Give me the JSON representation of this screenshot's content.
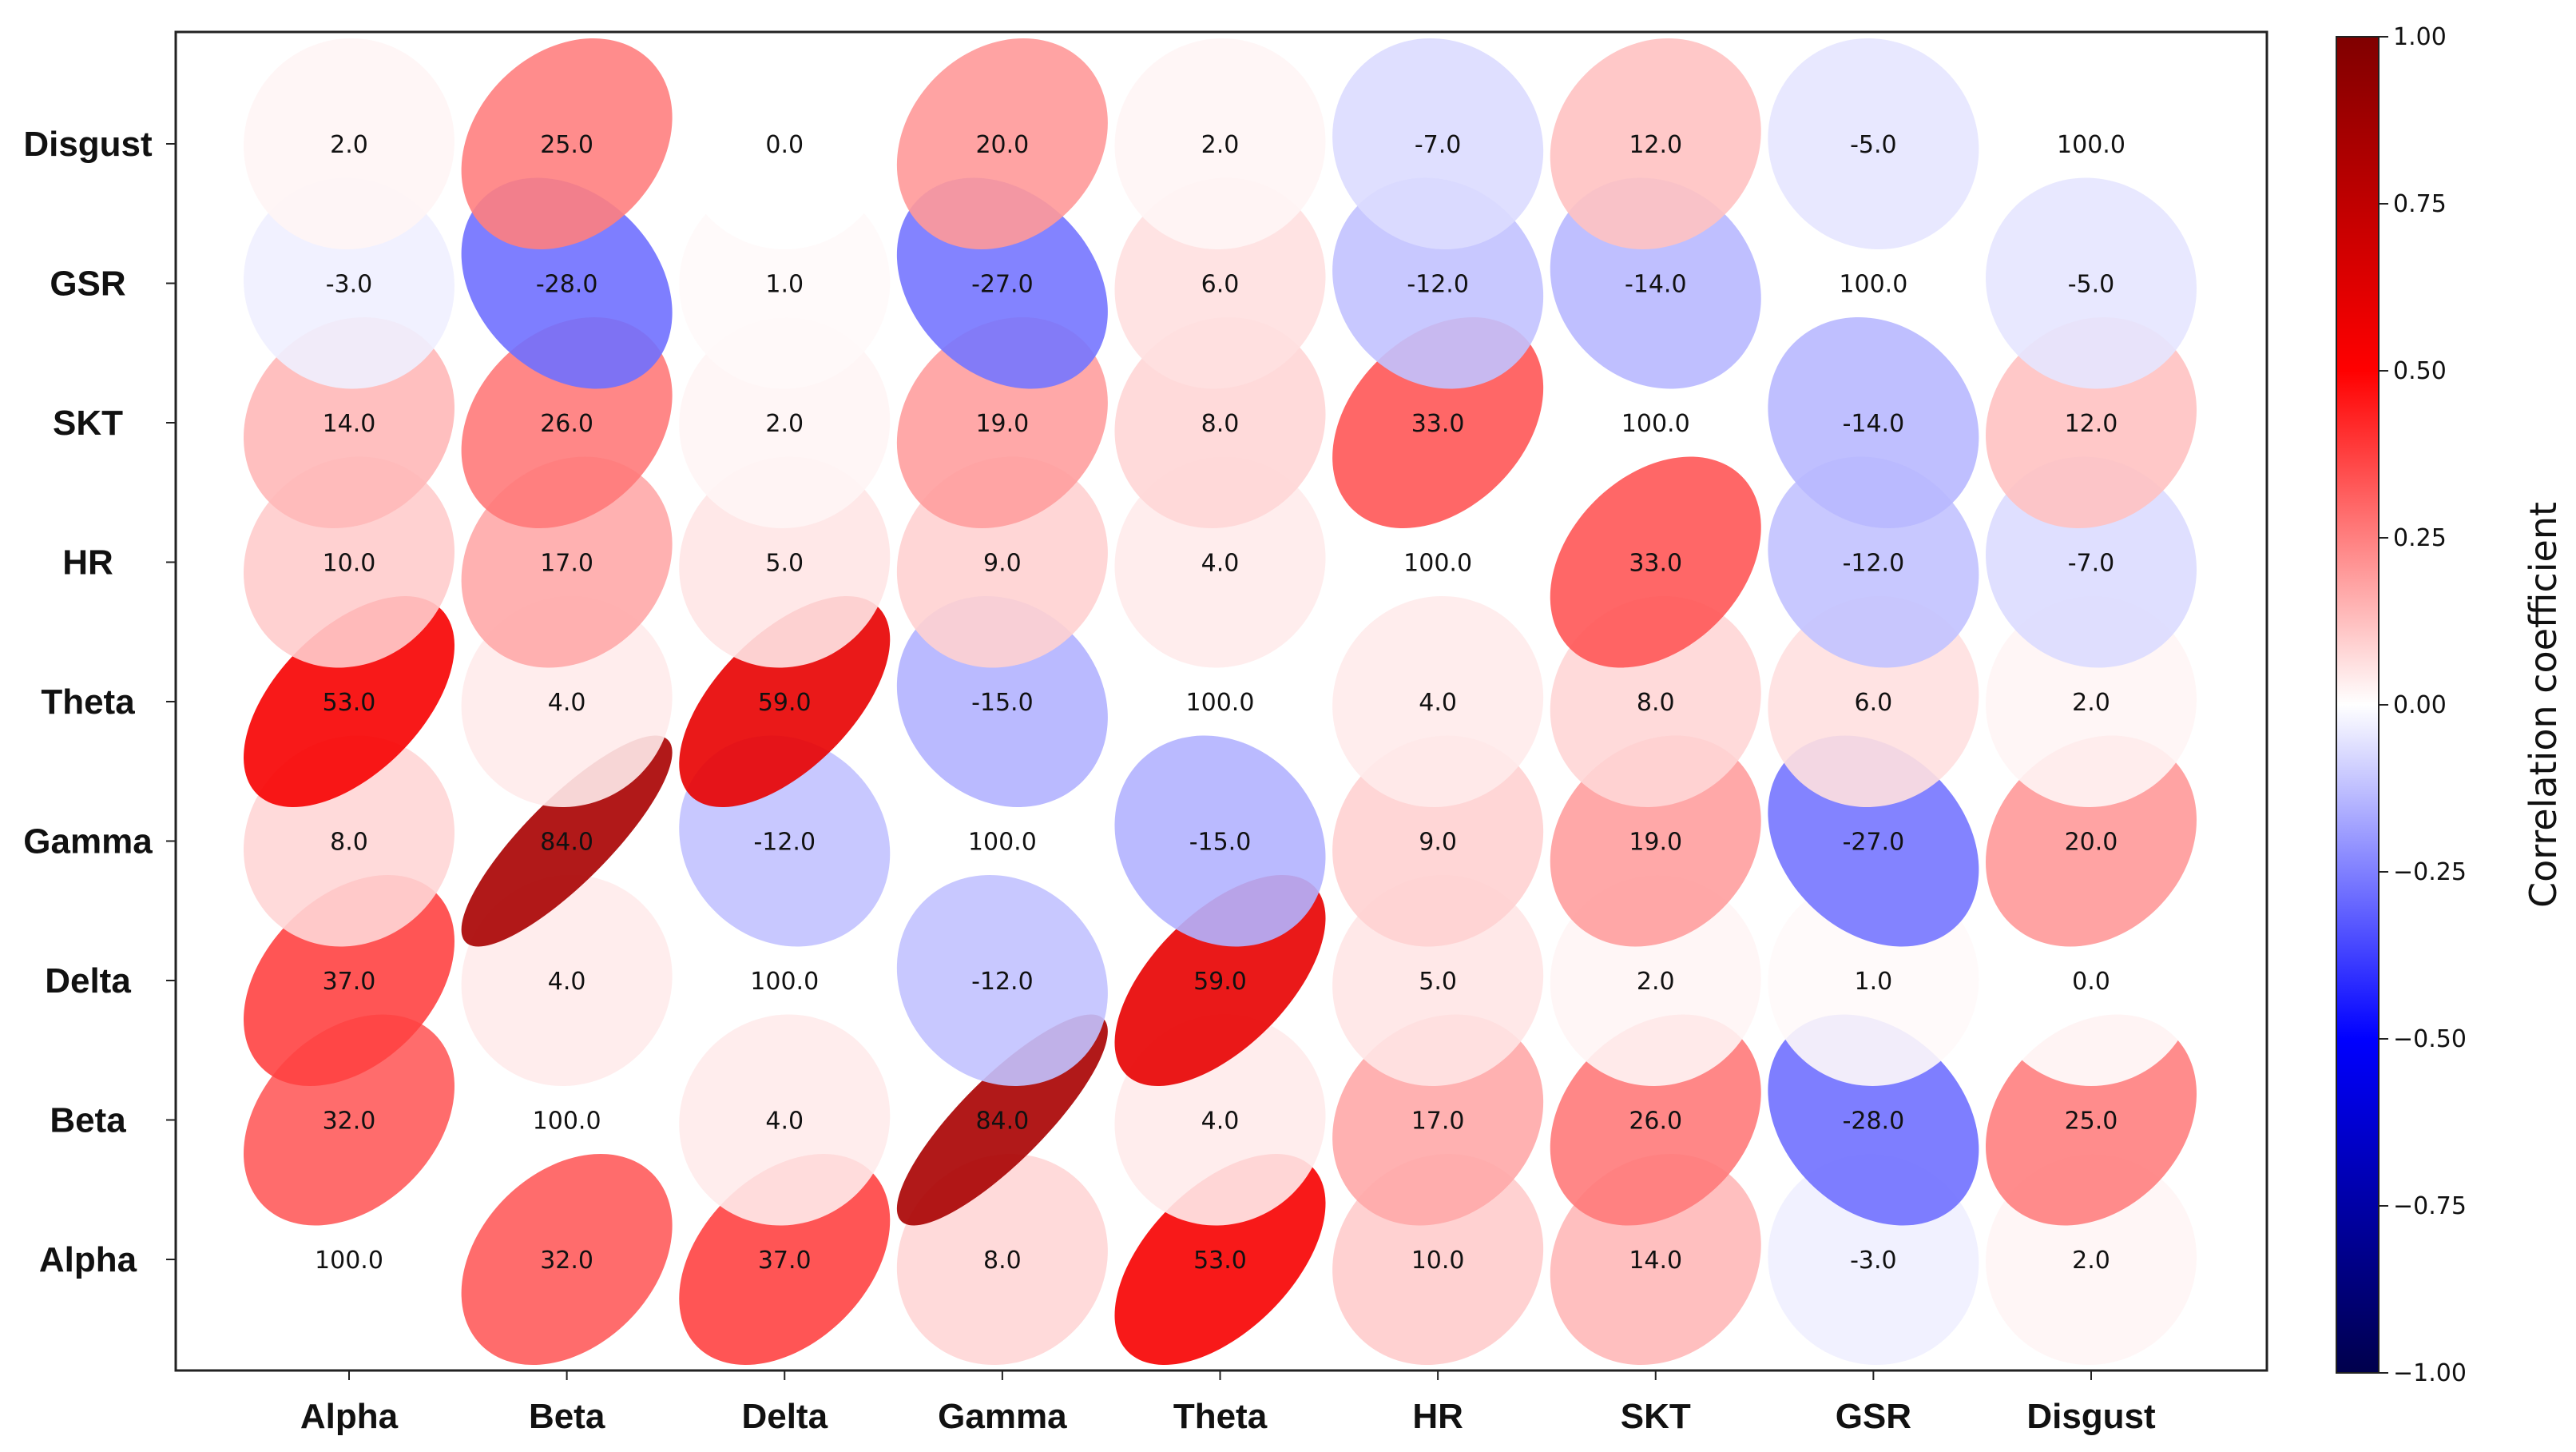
{
  "chart_data": {
    "type": "heatmap",
    "subtype": "ellipse-correlation-matrix",
    "title": "",
    "x_labels": [
      "Alpha",
      "Beta",
      "Delta",
      "Gamma",
      "Theta",
      "HR",
      "SKT",
      "GSR",
      "Disgust"
    ],
    "y_labels_bottom_to_top": [
      "Alpha",
      "Beta",
      "Delta",
      "Gamma",
      "Theta",
      "HR",
      "SKT",
      "GSR",
      "Disgust"
    ],
    "values": [
      [
        100.0,
        32.0,
        37.0,
        8.0,
        53.0,
        10.0,
        14.0,
        -3.0,
        2.0
      ],
      [
        32.0,
        100.0,
        4.0,
        84.0,
        4.0,
        17.0,
        26.0,
        -28.0,
        25.0
      ],
      [
        37.0,
        4.0,
        100.0,
        -12.0,
        59.0,
        5.0,
        2.0,
        1.0,
        0.0
      ],
      [
        8.0,
        84.0,
        -12.0,
        100.0,
        -15.0,
        9.0,
        19.0,
        -27.0,
        20.0
      ],
      [
        53.0,
        4.0,
        59.0,
        -15.0,
        100.0,
        4.0,
        8.0,
        6.0,
        2.0
      ],
      [
        10.0,
        17.0,
        5.0,
        9.0,
        4.0,
        100.0,
        33.0,
        -12.0,
        -7.0
      ],
      [
        14.0,
        26.0,
        2.0,
        19.0,
        8.0,
        33.0,
        100.0,
        -14.0,
        12.0
      ],
      [
        -3.0,
        -28.0,
        1.0,
        -27.0,
        6.0,
        -12.0,
        -14.0,
        100.0,
        -5.0
      ],
      [
        2.0,
        25.0,
        0.0,
        20.0,
        2.0,
        -7.0,
        12.0,
        -5.0,
        100.0
      ]
    ],
    "value_scale": 100,
    "colorbar": {
      "label": "Correlation coefficient",
      "range": [
        -1.0,
        1.0
      ],
      "ticks": [
        "1.00",
        "0.75",
        "0.50",
        "0.25",
        "0.00",
        "−0.25",
        "−0.50",
        "−0.75",
        "−1.00"
      ],
      "colormap": "seismic",
      "colors": {
        "neg_dark": "#00004c",
        "neg": "#0000ff",
        "mid": "#ffffff",
        "pos": "#ff0000",
        "pos_dark": "#800000"
      }
    }
  }
}
